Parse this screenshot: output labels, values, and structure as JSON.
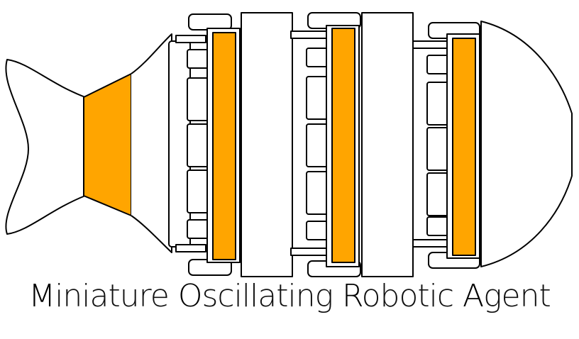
{
  "colors": {
    "accent": "#FFA500",
    "outline": "#000000",
    "fill": "#FFFFFF"
  },
  "caption": {
    "words": [
      {
        "initial": "M",
        "rest": "iniature"
      },
      {
        "initial": "O",
        "rest": "scillating"
      },
      {
        "initial": "R",
        "rest": "obotic"
      },
      {
        "initial": "A",
        "rest": "gent"
      }
    ]
  }
}
